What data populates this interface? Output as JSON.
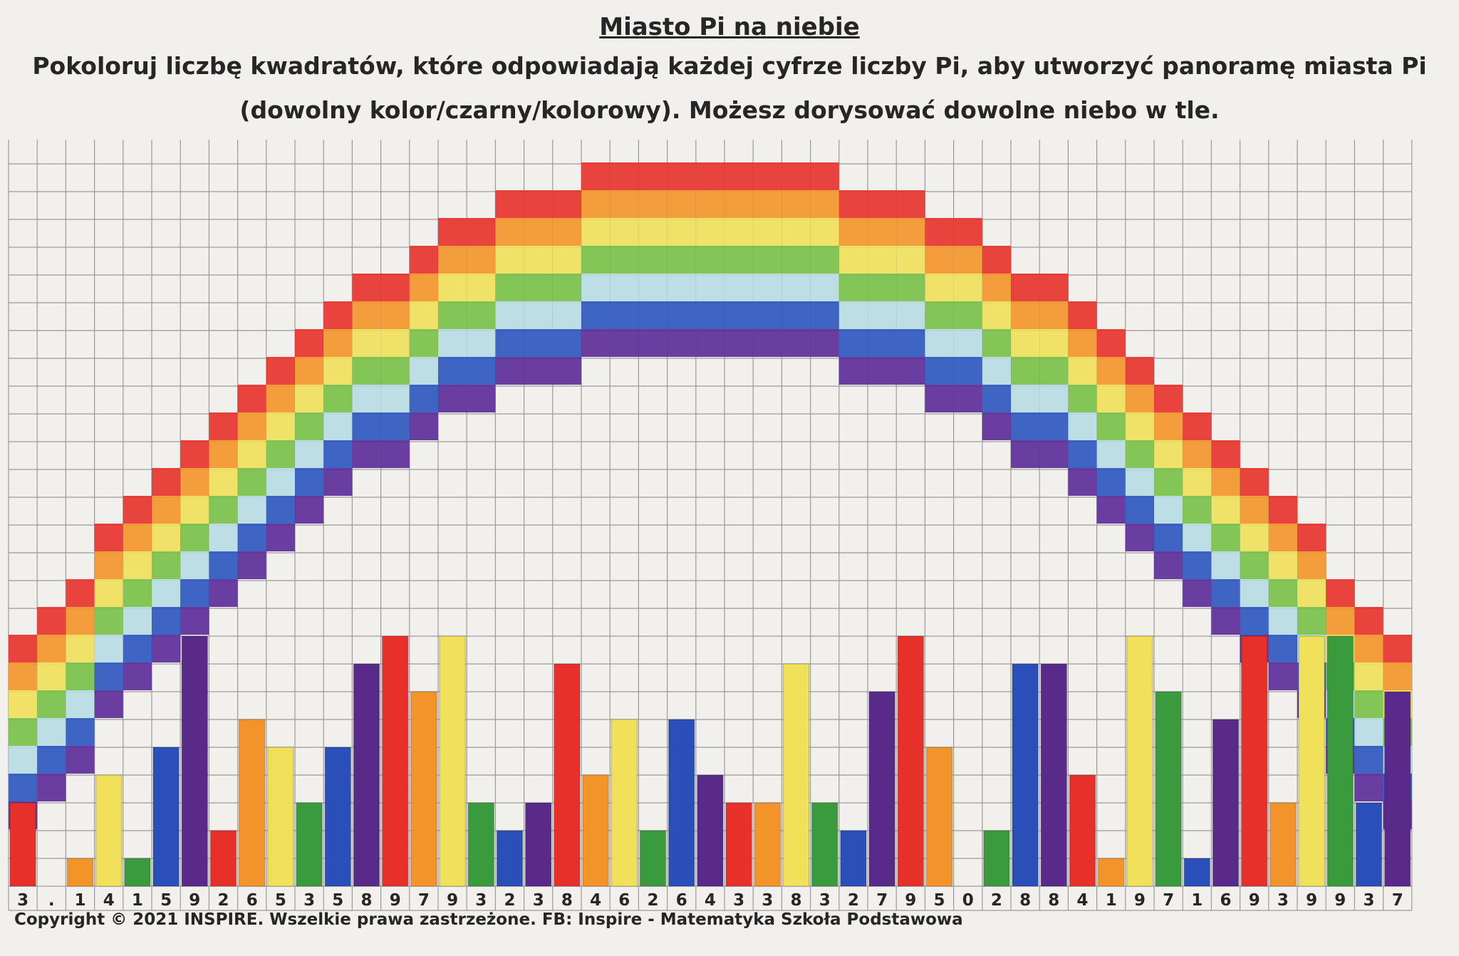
{
  "header": {
    "title": "Miasto Pi na niebie",
    "instruction_line1": "Pokoloruj liczbę kwadratów, które odpowiadają każdej cyfrze liczby Pi, aby utworzyć panoramę miasta Pi",
    "instruction_line2": "(dowolny kolor/czarny/kolorowy). Możesz dorysować dowolne niebo w tle."
  },
  "footer": {
    "copyright": "Copyright © 2021 INSPIRE. Wszelkie prawa zastrzeżone. FB: Inspire - Matematyka Szkoła Podstawowa"
  },
  "colors": {
    "paper": "#f2f0ec",
    "grid": "#9a9a9a",
    "palette": [
      "#e8302a",
      "#f3942a",
      "#f0e05a",
      "#3a9a3e",
      "#2a4fb8",
      "#5a2a8a"
    ],
    "rainbow_bands": [
      "#e8302a",
      "#f3942a",
      "#f0e05a",
      "#78c048",
      "#b8dbe4",
      "#2a55c0",
      "#5a2a98"
    ]
  },
  "chart_data": {
    "type": "bar",
    "categories": [
      "3",
      ".",
      "1",
      "4",
      "1",
      "5",
      "9",
      "2",
      "6",
      "5",
      "3",
      "5",
      "8",
      "9",
      "7",
      "9",
      "3",
      "2",
      "3",
      "8",
      "4",
      "6",
      "2",
      "6",
      "4",
      "3",
      "3",
      "8",
      "3",
      "2",
      "7",
      "9",
      "5",
      "0",
      "2",
      "8",
      "8",
      "4",
      "1",
      "9",
      "7",
      "1",
      "6",
      "9",
      "3",
      "9",
      "9",
      "3",
      "7"
    ],
    "values": [
      3,
      0,
      1,
      4,
      1,
      5,
      9,
      2,
      6,
      5,
      3,
      5,
      8,
      9,
      7,
      9,
      3,
      2,
      3,
      8,
      4,
      6,
      2,
      6,
      4,
      3,
      3,
      8,
      3,
      2,
      7,
      9,
      5,
      0,
      2,
      8,
      8,
      4,
      1,
      9,
      7,
      1,
      6,
      9,
      3,
      9,
      9,
      3,
      7
    ],
    "bar_colors": [
      "red",
      "orange",
      "orange",
      "yellow",
      "green",
      "blue",
      "purple",
      "red",
      "orange",
      "yellow",
      "green",
      "blue",
      "purple",
      "red",
      "orange",
      "yellow",
      "green",
      "blue",
      "purple",
      "red",
      "orange",
      "yellow",
      "green",
      "blue",
      "purple",
      "red",
      "orange",
      "yellow",
      "green",
      "blue",
      "purple",
      "red",
      "orange",
      "yellow",
      "green",
      "blue",
      "purple",
      "red",
      "orange",
      "yellow",
      "green",
      "blue",
      "purple",
      "red",
      "orange",
      "yellow",
      "green",
      "blue",
      "purple"
    ],
    "unit": "squares",
    "grid": true,
    "background_decoration": "rainbow arc drawn in coloured squares"
  }
}
